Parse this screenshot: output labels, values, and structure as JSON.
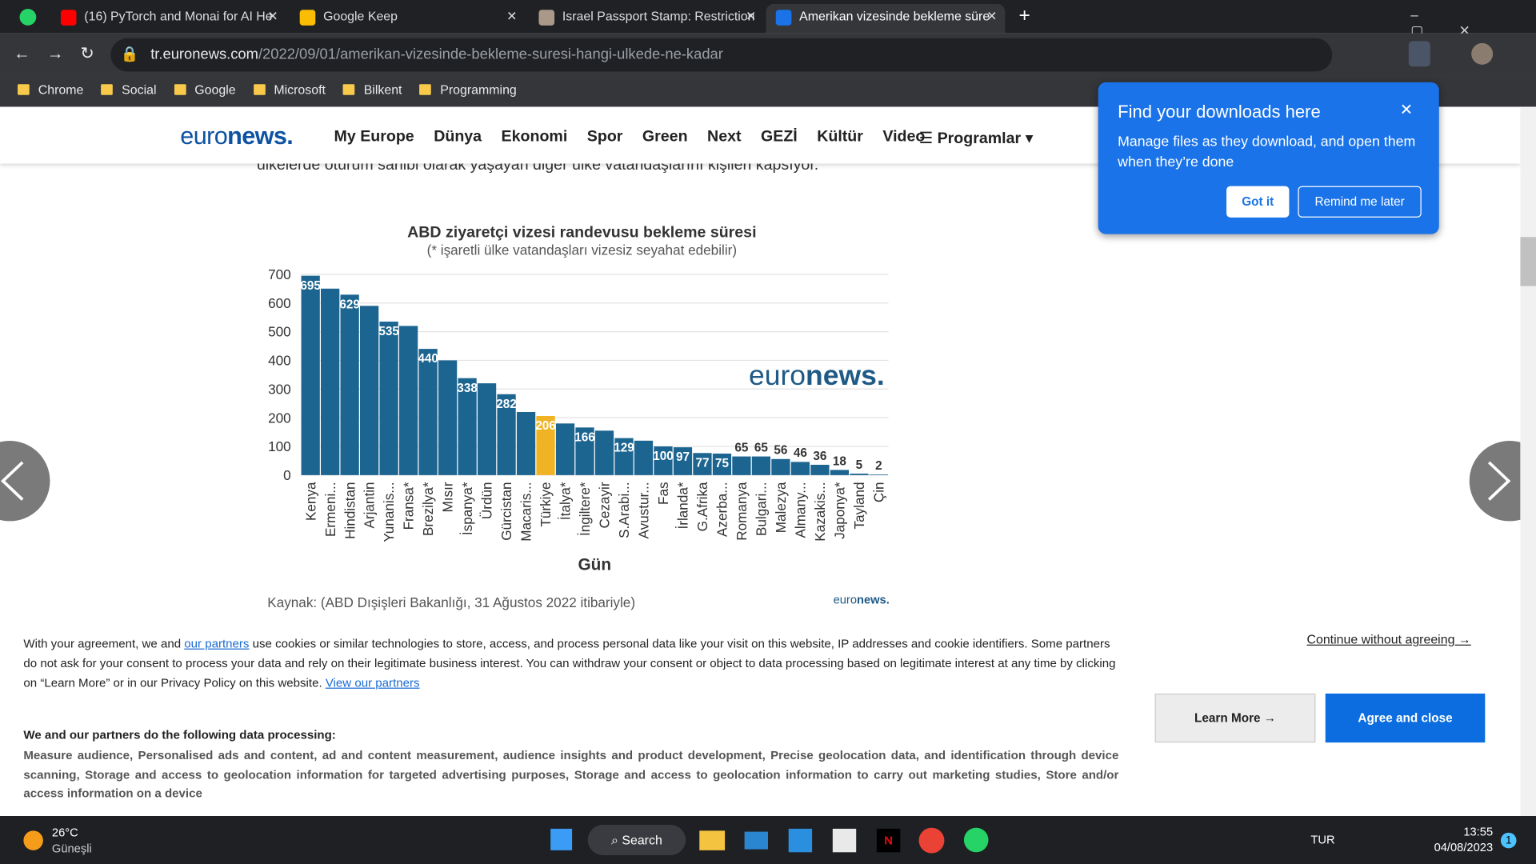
{
  "tabs": [
    "(16) PyTorch and Monai for AI He",
    "Google Keep",
    "Israel Passport Stamp: Restriction",
    "Amerikan vizesinde bekleme süre"
  ],
  "address": {
    "host": "tr.euronews.com",
    "path": "/2022/09/01/amerikan-vizesinde-bekleme-suresi-hangi-ulkede-ne-kadar"
  },
  "bookmarks": [
    "Chrome",
    "Social",
    "Google",
    "Microsoft",
    "Bilkent",
    "Programming"
  ],
  "nav": {
    "logo": [
      "euro",
      "news."
    ],
    "items": [
      "My Europe",
      "Dünya",
      "Ekonomi",
      "Spor",
      "Green",
      "Next",
      "GEZİ",
      "Kültür",
      "Video"
    ],
    "programs": "Programlar"
  },
  "article_text": "ülkelerde oturum sahibi olarak yaşayan diğer ülke vatandaşlarını kişileri kapsıyor.",
  "chart": {
    "type": "bar",
    "title": "ABD ziyaretçi vizesi randevusu bekleme süresi",
    "subtitle": "(* işaretli ülke vatandaşları vizesiz seyahat edebilir)",
    "x_label": "Gün",
    "categories": [
      "Kenya",
      "Ermeni...",
      "Hindistan",
      "Arjantin",
      "Yunanis...",
      "Fransa*",
      "Brezilya*",
      "Mısır",
      "İspanya*",
      "Ürdün",
      "Gürcistan",
      "Macaris...",
      "Türkiye",
      "İtalya*",
      "İngiltere*",
      "Cezayir",
      "S.Arabi...",
      "Avustur...",
      "Fas",
      "İrlanda*",
      "G.Afrika",
      "Azerba...",
      "Romanya",
      "Bulgari...",
      "Malezya",
      "Almany...",
      "Kazakis...",
      "Japonya*",
      "Tayland",
      "Çin"
    ],
    "values": [
      695,
      650,
      629,
      590,
      535,
      520,
      440,
      400,
      338,
      320,
      282,
      220,
      206,
      180,
      166,
      155,
      129,
      120,
      100,
      97,
      77,
      75,
      65,
      65,
      56,
      46,
      36,
      18,
      5,
      2
    ],
    "value_labels": [
      "695",
      null,
      "629",
      null,
      "535",
      null,
      "440",
      null,
      "338",
      null,
      "282",
      null,
      "206",
      null,
      "166",
      null,
      "129",
      null,
      "100",
      "97",
      "77",
      "75",
      "65",
      "65",
      "56",
      "46",
      "36",
      "18",
      "5",
      "2"
    ],
    "color": "#1d6591",
    "highlight": {
      "index": 12,
      "color": "#f0b323"
    },
    "ylim": [
      0,
      700
    ],
    "yticks": [
      0,
      100,
      200,
      300,
      400,
      500,
      600,
      700
    ],
    "grid": true,
    "watermark": [
      "euro",
      "news."
    ],
    "source": "Kaynak: (ABD Dışişleri Bakanlığı, 31 Ağustos 2022 itibariyle)",
    "source_logo": [
      "euro",
      "news."
    ]
  },
  "popup": {
    "title": "Find your downloads here",
    "body": "Manage files as they download, and open them when they’re done",
    "got_it": "Got it",
    "remind": "Remind me later"
  },
  "cookie": {
    "p1": "With your agreement, we and ",
    "link1": "our partners",
    "p2": " use cookies or similar technologies to store, access, and process personal data like your visit on this website, IP addresses and cookie identifiers. Some partners do not ask for your consent to process your data and rely on their legitimate business interest. You can withdraw your consent or object to data processing based on legitimate interest at any time by clicking on “Learn More” or in our Privacy Policy on this website. ",
    "link2": "View our partners",
    "heading": "We and our partners do the following data processing:",
    "purposes": "Measure audience, Personalised ads and content, ad and content measurement, audience insights and product development, Precise geolocation data, and identification through device scanning, Storage and access to geolocation information for targeted advertising purposes, Storage and access to geolocation information to carry out marketing studies, Store and/or access information on a device",
    "continue": "Continue without agreeing →",
    "learn": "Learn More →",
    "agree": "Agree and close"
  },
  "taskbar": {
    "temp": "26°C",
    "weather": "Güneşli",
    "search": "Search",
    "lang": "TUR",
    "time": "13:55",
    "date": "04/08/2023",
    "badge": "1"
  }
}
